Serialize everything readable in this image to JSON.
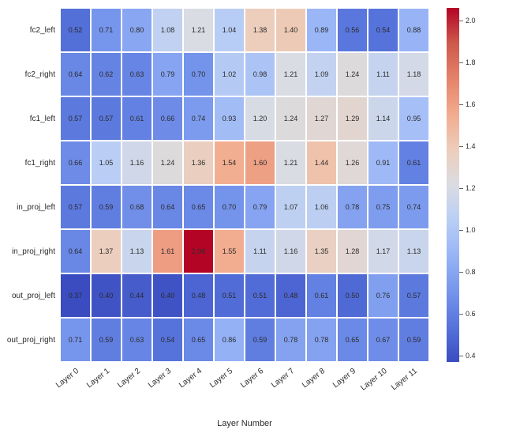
{
  "heatmap": {
    "type": "heatmap",
    "rows": [
      "fc2_left",
      "fc2_right",
      "fc1_left",
      "fc1_right",
      "in_proj_left",
      "in_proj_right",
      "out_proj_left",
      "out_proj_right"
    ],
    "columns": [
      "Layer 0",
      "Layer 1",
      "Layer 2",
      "Layer 3",
      "Layer 4",
      "Layer 5",
      "Layer 6",
      "Layer 7",
      "Layer 8",
      "Layer 9",
      "Layer 10",
      "Layer 11"
    ],
    "values": [
      [
        0.52,
        0.71,
        0.8,
        1.08,
        1.21,
        1.04,
        1.38,
        1.4,
        0.89,
        0.56,
        0.54,
        0.88
      ],
      [
        0.64,
        0.62,
        0.63,
        0.79,
        0.7,
        1.02,
        0.98,
        1.21,
        1.09,
        1.24,
        1.11,
        1.18
      ],
      [
        0.57,
        0.57,
        0.61,
        0.66,
        0.74,
        0.93,
        1.2,
        1.24,
        1.27,
        1.29,
        1.14,
        0.95
      ],
      [
        0.66,
        1.05,
        1.16,
        1.24,
        1.36,
        1.54,
        1.6,
        1.21,
        1.44,
        1.26,
        0.91,
        0.61
      ],
      [
        0.57,
        0.59,
        0.68,
        0.64,
        0.65,
        0.7,
        0.79,
        1.07,
        1.06,
        0.78,
        0.75,
        0.74
      ],
      [
        0.64,
        1.37,
        1.13,
        1.61,
        2.06,
        1.55,
        1.11,
        1.16,
        1.35,
        1.28,
        1.17,
        1.13
      ],
      [
        0.37,
        0.4,
        0.44,
        0.4,
        0.48,
        0.51,
        0.51,
        0.48,
        0.61,
        0.5,
        0.76,
        0.57
      ],
      [
        0.71,
        0.59,
        0.63,
        0.54,
        0.65,
        0.86,
        0.59,
        0.78,
        0.78,
        0.65,
        0.67,
        0.59
      ]
    ],
    "xlabel": "Layer Number",
    "cell_fontsize": 9,
    "label_fontsize": 10,
    "vmin": 0.37,
    "vmax": 2.06,
    "colorbar_ticks": [
      0.4,
      0.6,
      0.8,
      1.0,
      1.2,
      1.4,
      1.6,
      1.8,
      2.0
    ],
    "colorbar_labels": [
      "0.4",
      "0.6",
      "0.8",
      "1.0",
      "1.2",
      "1.4",
      "1.6",
      "1.8",
      "2.0"
    ],
    "cmap_stops": [
      [
        0.0,
        "#3b4cc0"
      ],
      [
        0.1,
        "#5673db"
      ],
      [
        0.2,
        "#7695ec"
      ],
      [
        0.3,
        "#97b4f6"
      ],
      [
        0.4,
        "#b9cef5"
      ],
      [
        0.5,
        "#dadce2"
      ],
      [
        0.6,
        "#edcdba"
      ],
      [
        0.7,
        "#f2ab8e"
      ],
      [
        0.8,
        "#e5826a"
      ],
      [
        0.9,
        "#cd594b"
      ],
      [
        1.0,
        "#b40426"
      ]
    ],
    "background_color": "#ffffff",
    "cell_border_color": "#ffffff",
    "cell_border_width": 1
  }
}
